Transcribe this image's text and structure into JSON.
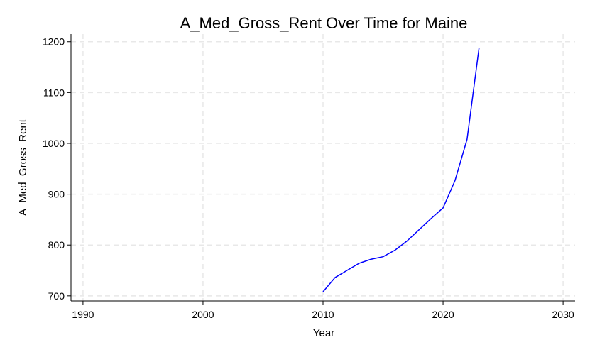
{
  "chart_data": {
    "type": "line",
    "title": "A_Med_Gross_Rent Over Time for Maine",
    "xlabel": "Year",
    "ylabel": "A_Med_Gross_Rent",
    "xlim": [
      1989,
      2031
    ],
    "ylim": [
      690,
      1215
    ],
    "x_ticks": [
      1990,
      2000,
      2010,
      2020,
      2030
    ],
    "y_ticks": [
      700,
      800,
      900,
      1000,
      1100,
      1200
    ],
    "grid": true,
    "legend": "none",
    "series": [
      {
        "color": "#0000ff",
        "x": [
          2010,
          2011,
          2012,
          2013,
          2014,
          2015,
          2016,
          2017,
          2018,
          2019,
          2020,
          2021,
          2022,
          2023
        ],
        "y": [
          708,
          736,
          750,
          764,
          772,
          777,
          790,
          808,
          830,
          852,
          873,
          927,
          1008,
          1188
        ]
      }
    ]
  }
}
